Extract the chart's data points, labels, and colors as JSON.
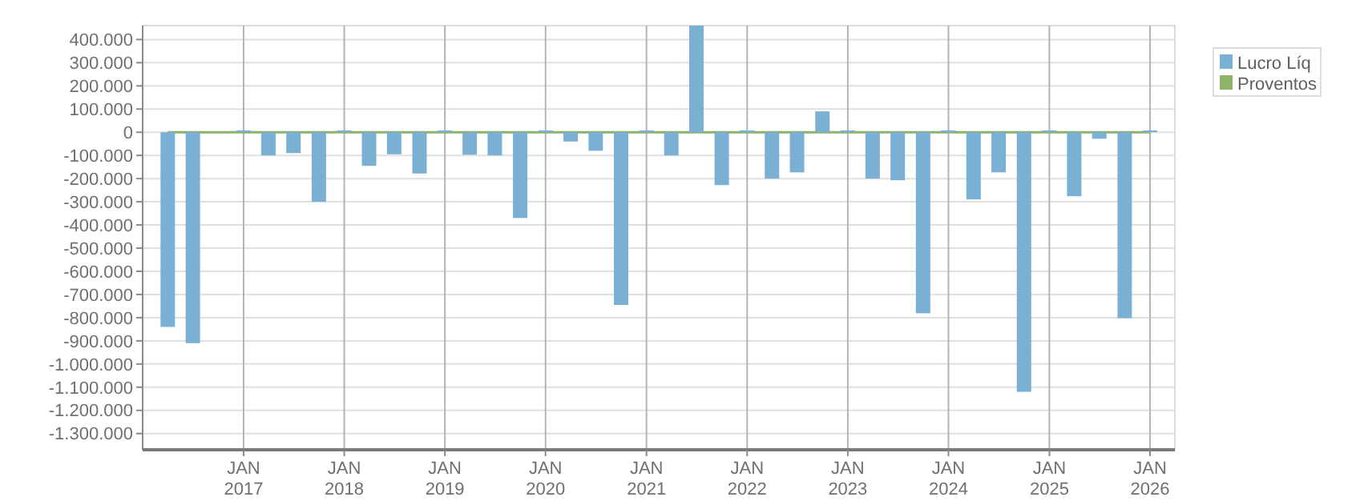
{
  "chart_data": {
    "type": "bar",
    "x": [
      "2016-04-01",
      "2016-07-01",
      "2016-10-01",
      "2017-01-01",
      "2017-04-01",
      "2017-07-01",
      "2017-10-01",
      "2018-01-01",
      "2018-04-01",
      "2018-07-01",
      "2018-10-01",
      "2019-01-01",
      "2019-04-01",
      "2019-07-01",
      "2019-10-01",
      "2020-01-01",
      "2020-04-01",
      "2020-07-01",
      "2020-10-01",
      "2021-01-01",
      "2021-04-01",
      "2021-07-01",
      "2021-10-01",
      "2022-01-01",
      "2022-04-01",
      "2022-07-01",
      "2022-10-01",
      "2023-01-01",
      "2023-04-01",
      "2023-07-01",
      "2023-10-01",
      "2024-01-01",
      "2024-04-01",
      "2024-07-01",
      "2024-10-01",
      "2025-01-01",
      "2025-04-01",
      "2025-07-01",
      "2025-10-01",
      "2026-01-01"
    ],
    "series": [
      {
        "name": "Lucro Líq",
        "color": "#7ab0d3",
        "values": [
          -840000,
          -910000,
          null,
          8000,
          -100000,
          -90000,
          -300000,
          8000,
          -145000,
          -95000,
          -178000,
          8000,
          -97000,
          -100000,
          -370000,
          8000,
          -40000,
          -80000,
          -745000,
          8000,
          -100000,
          460000,
          -228000,
          8000,
          -200000,
          -173000,
          90000,
          8000,
          -200000,
          -207000,
          -781000,
          8000,
          -290000,
          -173000,
          -1120000,
          8000,
          -276000,
          -28000,
          -802000,
          8000
        ]
      },
      {
        "name": "Proventos",
        "type": "line",
        "color": "#8db36b",
        "values": [
          0,
          0,
          0,
          0,
          0,
          0,
          0,
          0,
          0,
          0,
          0,
          0,
          0,
          0,
          0,
          0,
          0,
          0,
          0,
          0,
          0,
          0,
          0,
          0,
          0,
          0,
          0,
          0,
          0,
          0,
          0,
          0,
          0,
          0,
          0,
          0,
          0,
          0,
          0,
          0
        ]
      }
    ],
    "xlim": [
      "2016-01-01",
      "2026-04-01"
    ],
    "xticks": [
      {
        "value": "2017-01-01",
        "label": "JAN 2017"
      },
      {
        "value": "2018-01-01",
        "label": "JAN 2018"
      },
      {
        "value": "2019-01-01",
        "label": "JAN 2019"
      },
      {
        "value": "2020-01-01",
        "label": "JAN 2020"
      },
      {
        "value": "2021-01-01",
        "label": "JAN 2021"
      },
      {
        "value": "2022-01-01",
        "label": "JAN 2022"
      },
      {
        "value": "2023-01-01",
        "label": "JAN 2023"
      },
      {
        "value": "2024-01-01",
        "label": "JAN 2024"
      },
      {
        "value": "2025-01-01",
        "label": "JAN 2025"
      },
      {
        "value": "2026-01-01",
        "label": "JAN 2026"
      }
    ],
    "ylim": [
      -1370000,
      460000
    ],
    "yticks": [
      {
        "value": 400000,
        "label": "400.000"
      },
      {
        "value": 300000,
        "label": "300.000"
      },
      {
        "value": 200000,
        "label": "200.000"
      },
      {
        "value": 100000,
        "label": "100.000"
      },
      0,
      {
        "value": -100000,
        "label": "-100.000"
      },
      {
        "value": -200000,
        "label": "-200.000"
      },
      {
        "value": -300000,
        "label": "-300.000"
      },
      {
        "value": -400000,
        "label": "-400.000"
      },
      {
        "value": -500000,
        "label": "-500.000"
      },
      {
        "value": -600000,
        "label": "-600.000"
      },
      {
        "value": -700000,
        "label": "-700.000"
      },
      {
        "value": -800000,
        "label": "-800.000"
      },
      {
        "value": -900000,
        "label": "-900.000"
      },
      {
        "value": -1000000,
        "label": "-1.000.000"
      },
      {
        "value": -1100000,
        "label": "-1.100.000"
      },
      {
        "value": -1200000,
        "label": "-1.200.000"
      },
      {
        "value": -1300000,
        "label": "-1.300.000"
      }
    ],
    "grid": true,
    "legend": "top right",
    "marker": "none"
  }
}
